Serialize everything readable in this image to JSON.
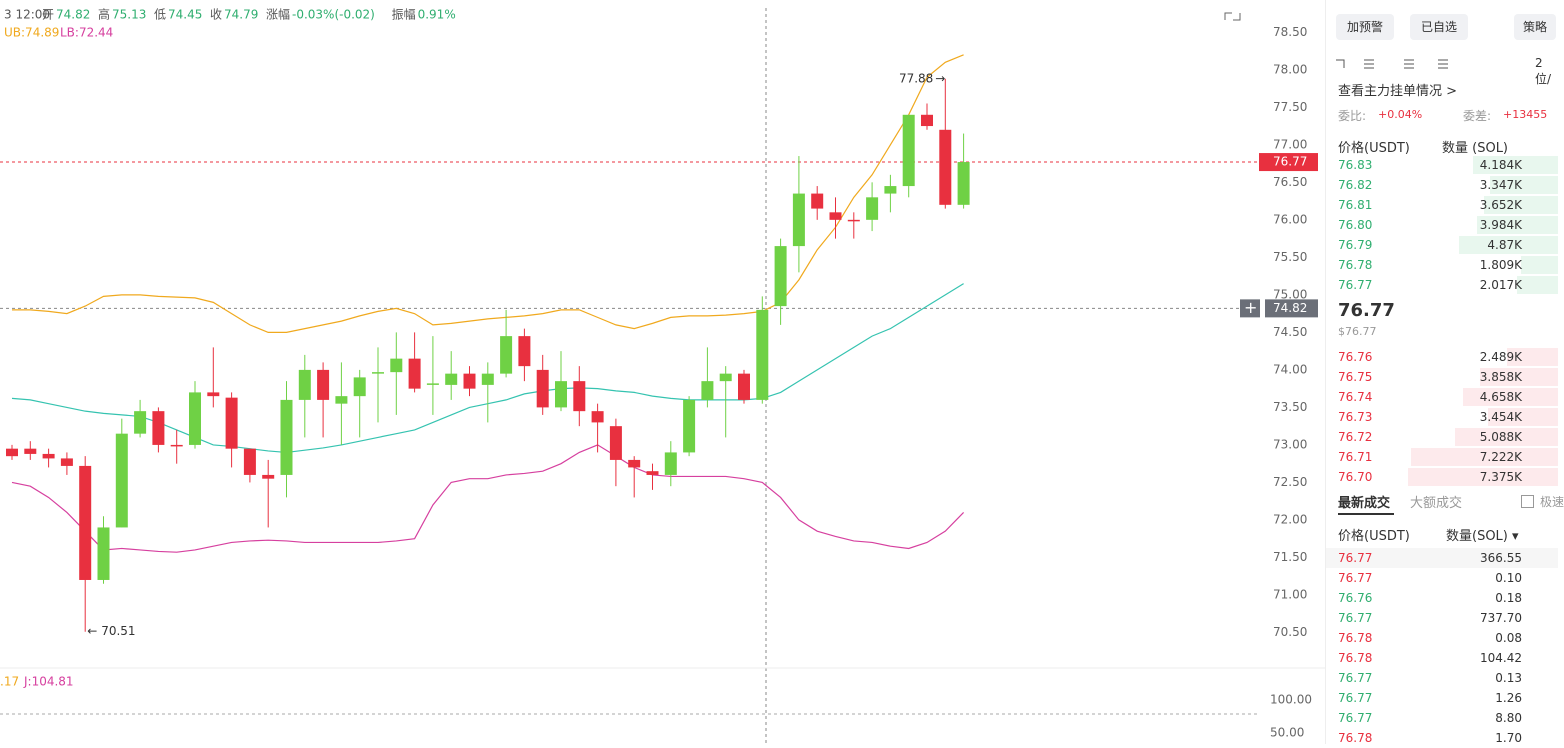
{
  "header": {
    "time": "3 12:00",
    "ohlc": [
      [
        "开",
        "74.82"
      ],
      [
        "高",
        "75.13"
      ],
      [
        "低",
        "74.45"
      ],
      [
        "收",
        "74.79"
      ],
      [
        "涨幅",
        "-0.03%(-0.02)"
      ],
      [
        "振幅",
        "0.91%"
      ]
    ],
    "ub": "UB:74.89",
    "lb": "LB:72.44"
  },
  "chart": {
    "type": "candlestick",
    "ylim": [
      70.0,
      78.93
    ],
    "yticks": [
      {
        "value": 78.5,
        "label": "78.50"
      },
      {
        "value": 78,
        "label": "78.00"
      },
      {
        "value": 77.5,
        "label": "77.50"
      },
      {
        "value": 77,
        "label": "77.00"
      },
      {
        "value": 76.5,
        "label": "76.50"
      },
      {
        "value": 76,
        "label": "76.00"
      },
      {
        "value": 75.5,
        "label": "75.50"
      },
      {
        "value": 75,
        "label": "75.00"
      },
      {
        "value": 74.5,
        "label": "74.50"
      },
      {
        "value": 74,
        "label": "74.00"
      },
      {
        "value": 73.5,
        "label": "73.50"
      },
      {
        "value": 73,
        "label": "73.00"
      },
      {
        "value": 72.5,
        "label": "72.50"
      },
      {
        "value": 72,
        "label": "72.00"
      },
      {
        "value": 71.5,
        "label": "71.50"
      },
      {
        "value": 71,
        "label": "71.00"
      },
      {
        "value": 70.5,
        "label": "70.50"
      }
    ],
    "last_price": {
      "value": 76.77,
      "label": "76.77"
    },
    "cross_price": {
      "value": 74.82,
      "label": "74.82"
    },
    "high_note": {
      "value": 77.88,
      "label": "77.88"
    },
    "low_note": {
      "value": 70.51,
      "label": "70.51"
    },
    "up_color": "#6fd145",
    "down_color": "#e8303f",
    "candles": [
      [
        72.95,
        72.85,
        73.0,
        72.8
      ],
      [
        72.95,
        72.88,
        73.05,
        72.8
      ],
      [
        72.88,
        72.82,
        72.95,
        72.7
      ],
      [
        72.82,
        72.72,
        72.9,
        72.6
      ],
      [
        72.72,
        71.2,
        72.85,
        70.51
      ],
      [
        71.2,
        71.9,
        72.05,
        71.15
      ],
      [
        71.9,
        73.15,
        73.35,
        71.9
      ],
      [
        73.15,
        73.45,
        73.6,
        73.1
      ],
      [
        73.45,
        73.0,
        73.5,
        72.9
      ],
      [
        73.0,
        72.98,
        73.2,
        72.75
      ],
      [
        73.0,
        73.7,
        73.85,
        72.95
      ],
      [
        73.7,
        73.65,
        74.3,
        73.5
      ],
      [
        73.63,
        72.95,
        73.7,
        72.7
      ],
      [
        72.95,
        72.6,
        72.95,
        72.5
      ],
      [
        72.6,
        72.55,
        72.8,
        71.9
      ],
      [
        72.6,
        73.6,
        73.85,
        72.3
      ],
      [
        73.6,
        74.0,
        74.2,
        73.1
      ],
      [
        74.0,
        73.6,
        74.1,
        73.1
      ],
      [
        73.55,
        73.65,
        74.1,
        73.0
      ],
      [
        73.65,
        73.9,
        74.0,
        73.1
      ],
      [
        73.95,
        73.97,
        74.3,
        73.3
      ],
      [
        73.97,
        74.15,
        74.5,
        73.4
      ],
      [
        74.15,
        73.75,
        74.5,
        73.7
      ],
      [
        73.8,
        73.82,
        74.45,
        73.4
      ],
      [
        73.8,
        73.95,
        74.25,
        73.6
      ],
      [
        73.95,
        73.75,
        74.05,
        73.65
      ],
      [
        73.8,
        73.95,
        74.1,
        73.3
      ],
      [
        73.95,
        74.45,
        74.8,
        73.9
      ],
      [
        74.45,
        74.05,
        74.55,
        73.85
      ],
      [
        74.0,
        73.5,
        74.2,
        73.4
      ],
      [
        73.5,
        73.85,
        74.25,
        73.45
      ],
      [
        73.85,
        73.45,
        74.05,
        73.25
      ],
      [
        73.45,
        73.3,
        73.55,
        72.9
      ],
      [
        73.25,
        72.8,
        73.35,
        72.45
      ],
      [
        72.8,
        72.7,
        72.85,
        72.3
      ],
      [
        72.65,
        72.6,
        72.75,
        72.4
      ],
      [
        72.6,
        72.9,
        73.05,
        72.45
      ],
      [
        72.9,
        73.6,
        73.65,
        72.85
      ],
      [
        73.6,
        73.85,
        74.3,
        73.5
      ],
      [
        73.85,
        73.95,
        74.05,
        73.1
      ],
      [
        73.95,
        73.6,
        74.0,
        73.55
      ],
      [
        73.6,
        74.8,
        74.98,
        73.55
      ],
      [
        74.85,
        75.65,
        75.75,
        74.6
      ],
      [
        75.65,
        76.35,
        76.85,
        75.3
      ],
      [
        76.35,
        76.15,
        76.45,
        76.0
      ],
      [
        76.1,
        76.0,
        76.3,
        75.75
      ],
      [
        76.0,
        75.98,
        76.1,
        75.75
      ],
      [
        76.0,
        76.3,
        76.5,
        75.85
      ],
      [
        76.35,
        76.45,
        76.6,
        76.1
      ],
      [
        76.45,
        77.4,
        77.4,
        76.3
      ],
      [
        77.4,
        77.25,
        77.55,
        77.2
      ],
      [
        77.2,
        76.2,
        77.88,
        76.15
      ],
      [
        76.2,
        76.77,
        77.15,
        76.15
      ]
    ],
    "bands": {
      "ub": {
        "color": "#f0a91e",
        "values": [
          74.8,
          74.8,
          74.78,
          74.75,
          74.85,
          74.98,
          75.0,
          75.0,
          74.98,
          74.97,
          74.96,
          74.9,
          74.75,
          74.6,
          74.5,
          74.5,
          74.55,
          74.6,
          74.65,
          74.72,
          74.78,
          74.82,
          74.75,
          74.6,
          74.62,
          74.65,
          74.68,
          74.7,
          74.72,
          74.75,
          74.8,
          74.8,
          74.7,
          74.6,
          74.55,
          74.62,
          74.7,
          74.72,
          74.72,
          74.73,
          74.75,
          74.78,
          74.9,
          75.2,
          75.6,
          75.9,
          76.3,
          76.6,
          77.0,
          77.4,
          77.9,
          78.1,
          78.2
        ]
      },
      "mb": {
        "color": "#35c3b0",
        "values": [
          73.62,
          73.6,
          73.55,
          73.5,
          73.45,
          73.42,
          73.4,
          73.38,
          73.3,
          73.2,
          73.1,
          73.0,
          72.98,
          72.95,
          72.92,
          72.9,
          72.93,
          72.96,
          73.0,
          73.05,
          73.1,
          73.15,
          73.2,
          73.3,
          73.4,
          73.5,
          73.55,
          73.6,
          73.68,
          73.72,
          73.75,
          73.76,
          73.75,
          73.72,
          73.7,
          73.65,
          73.62,
          73.6,
          73.6,
          73.6,
          73.6,
          73.62,
          73.7,
          73.85,
          74.0,
          74.15,
          74.3,
          74.45,
          74.55,
          74.7,
          74.85,
          75.0,
          75.15
        ]
      },
      "lb": {
        "color": "#d6409f",
        "values": [
          72.5,
          72.45,
          72.3,
          72.1,
          71.85,
          71.6,
          71.62,
          71.6,
          71.58,
          71.57,
          71.6,
          71.65,
          71.7,
          71.72,
          71.73,
          71.72,
          71.7,
          71.7,
          71.7,
          71.7,
          71.7,
          71.72,
          71.75,
          72.2,
          72.5,
          72.55,
          72.55,
          72.6,
          72.62,
          72.65,
          72.75,
          72.9,
          73.0,
          72.85,
          72.7,
          72.6,
          72.58,
          72.58,
          72.58,
          72.58,
          72.55,
          72.5,
          72.3,
          72.0,
          71.85,
          71.78,
          71.72,
          71.7,
          71.65,
          71.62,
          71.7,
          71.85,
          72.1
        ]
      }
    }
  },
  "kdj": {
    "d_text": ".17",
    "j_text": "J:104.81",
    "yticks": [
      "100.00",
      "50.00"
    ]
  },
  "side": {
    "buttons": [
      "加预警",
      "已自选",
      "策略"
    ],
    "precision": "2位/",
    "link": "查看主力挂单情况 >",
    "ratio_label": "委比:",
    "ratio": "+0.04%",
    "diff_label": "委差:",
    "diff": "+13455",
    "columns": [
      "价格(USDT)",
      "数量 (SOL)"
    ],
    "asks": [
      {
        "price": "76.83",
        "qty": {
          "value": 4184,
          "label": "4.184K"
        }
      },
      {
        "price": "76.82",
        "qty": {
          "value": 3347,
          "label": "3.347K"
        }
      },
      {
        "price": "76.81",
        "qty": {
          "value": 3652,
          "label": "3.652K"
        }
      },
      {
        "price": "76.80",
        "qty": {
          "value": 3984,
          "label": "3.984K"
        }
      },
      {
        "price": "76.79",
        "qty": {
          "value": 4870,
          "label": "4.87K"
        }
      },
      {
        "price": "76.78",
        "qty": {
          "value": 1809,
          "label": "1.809K"
        }
      },
      {
        "price": "76.77",
        "qty": {
          "value": 2017,
          "label": "2.017K"
        }
      }
    ],
    "last": "76.77",
    "last_usd": "$76.77",
    "bids": [
      {
        "price": "76.76",
        "qty": {
          "value": 2489,
          "label": "2.489K"
        }
      },
      {
        "price": "76.75",
        "qty": {
          "value": 3858,
          "label": "3.858K"
        }
      },
      {
        "price": "76.74",
        "qty": {
          "value": 4658,
          "label": "4.658K"
        }
      },
      {
        "price": "76.73",
        "qty": {
          "value": 3454,
          "label": "3.454K"
        }
      },
      {
        "price": "76.72",
        "qty": {
          "value": 5088,
          "label": "5.088K"
        }
      },
      {
        "price": "76.71",
        "qty": {
          "value": 7222,
          "label": "7.222K"
        }
      },
      {
        "price": "76.70",
        "qty": {
          "value": 7375,
          "label": "7.375K"
        }
      }
    ],
    "tabs": [
      "最新成交",
      "大额成交"
    ],
    "fast": "极速",
    "trade_columns": [
      "价格(USDT)",
      "数量(SOL) ▾"
    ],
    "trades": [
      {
        "price": "76.77",
        "qty": "366.55",
        "color": "red"
      },
      {
        "price": "76.77",
        "qty": "0.10",
        "color": "red"
      },
      {
        "price": "76.76",
        "qty": "0.18",
        "color": "green"
      },
      {
        "price": "76.77",
        "qty": "737.70",
        "color": "green"
      },
      {
        "price": "76.78",
        "qty": "0.08",
        "color": "red"
      },
      {
        "price": "76.78",
        "qty": "104.42",
        "color": "red"
      },
      {
        "price": "76.77",
        "qty": "0.13",
        "color": "green"
      },
      {
        "price": "76.77",
        "qty": "1.26",
        "color": "green"
      },
      {
        "price": "76.77",
        "qty": "8.80",
        "color": "green"
      },
      {
        "price": "76.78",
        "qty": "1.70",
        "color": "red"
      }
    ]
  }
}
